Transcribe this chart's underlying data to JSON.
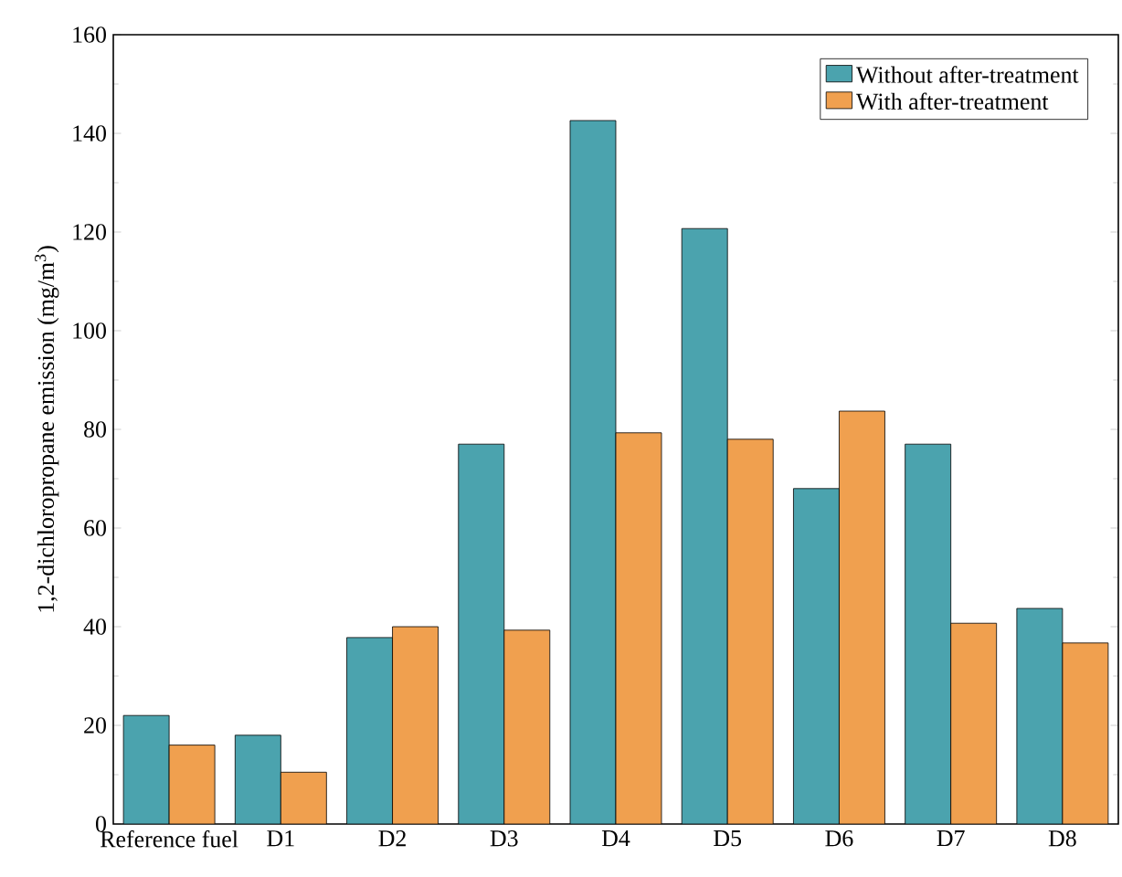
{
  "chart_data": {
    "type": "bar",
    "ylabel": "1,2-dichloropropane emission (mg/m$^{3}$)",
    "categories": [
      "Reference fuel",
      "D1",
      "D2",
      "D3",
      "D4",
      "D5",
      "D6",
      "D7",
      "D8"
    ],
    "series": [
      {
        "name": "Without after-treatment",
        "color": "#4ba3ae",
        "values": [
          22,
          18,
          37.8,
          77,
          142.6,
          120.7,
          68,
          77,
          43.7
        ]
      },
      {
        "name": "With after-treatment",
        "color": "#f0a04f",
        "values": [
          16,
          10.5,
          40,
          39.3,
          79.3,
          78,
          83.7,
          40.7,
          36.7
        ]
      }
    ],
    "ylim": [
      0,
      160
    ],
    "yticks": [
      0,
      20,
      40,
      60,
      80,
      100,
      120,
      140,
      160
    ],
    "grid": false,
    "legend": "top right"
  }
}
